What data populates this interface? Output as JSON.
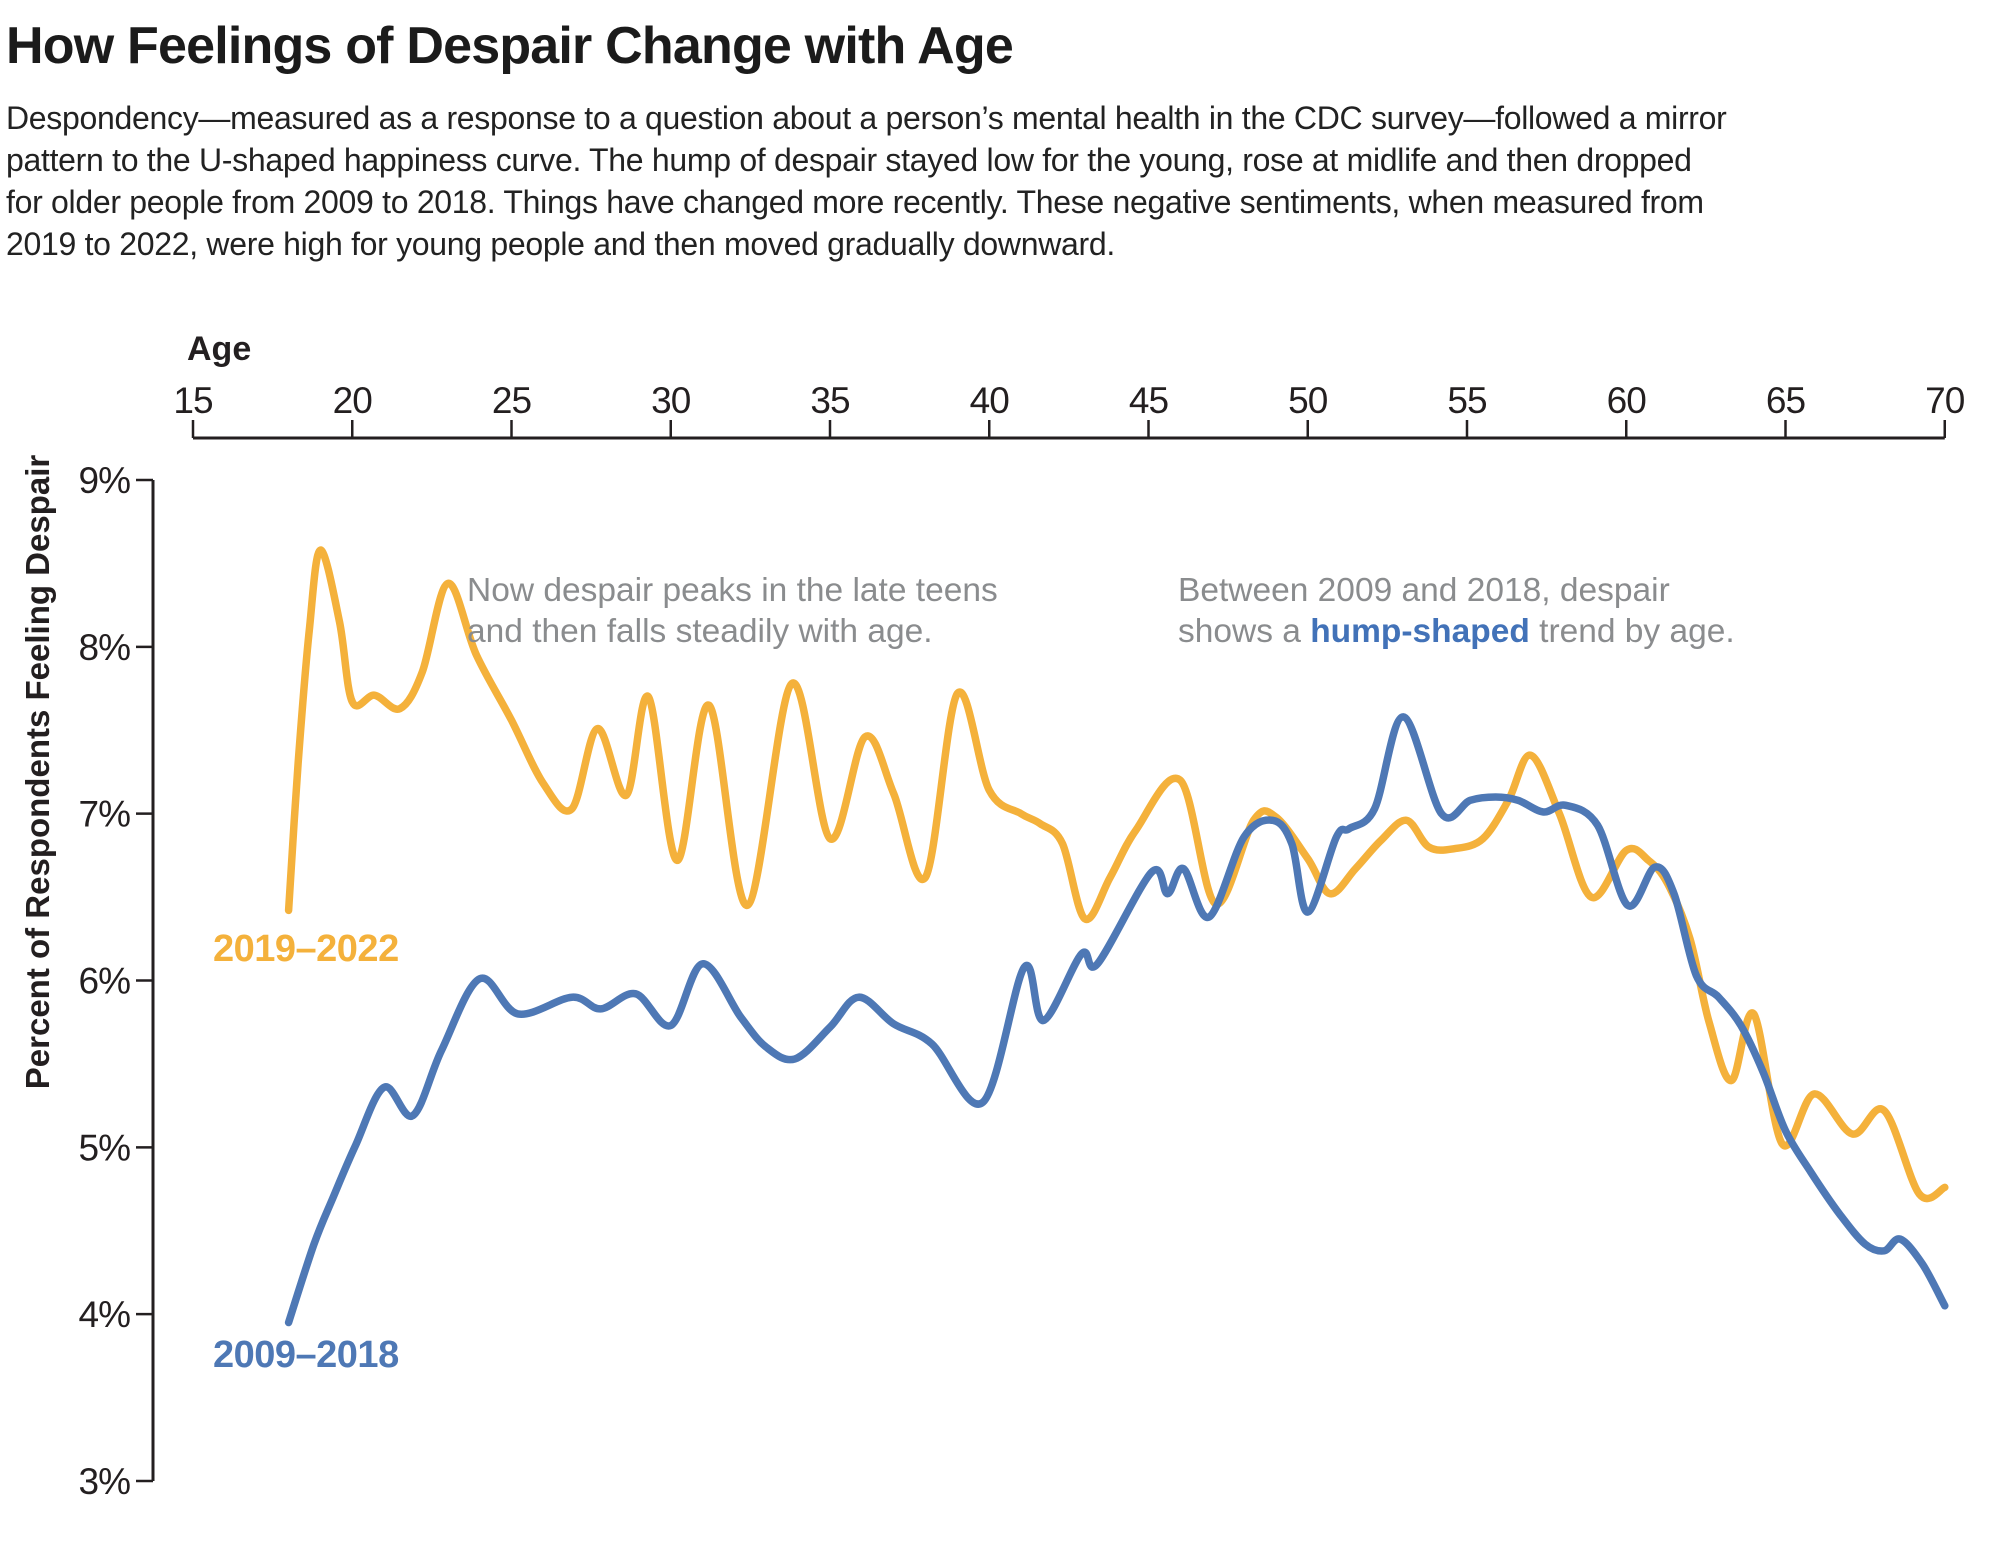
{
  "header": {
    "title": "How Feelings of Despair Change with Age",
    "subtitle_lines": [
      "Despondency—measured as a response to a question about a person’s mental health in the CDC survey—followed a mirror",
      "pattern to the U-shaped happiness curve. The hump of despair stayed low for the young, rose at midlife and then dropped",
      "for older people from 2009 to 2018. Things have changed more recently. These negative sentiments, when measured from",
      "2019 to 2022, were high for young people and then moved gradually downward."
    ]
  },
  "chart": {
    "age_axis_label": "Age",
    "y_axis_label": "Percent of Respondents Feeling Despair",
    "annotations": {
      "teens": {
        "line1": "Now despair peaks in the late teens",
        "line2": "and then falls steadily with age."
      },
      "hump": {
        "line1": "Between 2009 and 2018, despair",
        "line2_pre": "shows a ",
        "line2_bold": "hump-shaped",
        "line2_post": " trend by age."
      }
    },
    "series_labels": {
      "recent": "2019–2022",
      "past": "2009–2018"
    }
  },
  "colors": {
    "yellow": "#F4B13B",
    "blue": "#4E78B5",
    "gray_text": "#8A8C8E",
    "axis": "#231F20",
    "hump_blue": "#4272B8"
  },
  "chart_data": {
    "type": "line",
    "title": "How Feelings of Despair Change with Age",
    "xlabel": "Age",
    "ylabel": "Percent of Respondents Feeling Despair",
    "xlim": [
      15,
      70
    ],
    "ylim": [
      3,
      9
    ],
    "grid": false,
    "legend_position": "inline-labels",
    "x_ticks": [
      15,
      20,
      25,
      30,
      35,
      40,
      45,
      50,
      55,
      60,
      65,
      70
    ],
    "y_ticks": [
      {
        "label": "9%",
        "value": 9
      },
      {
        "label": "8%",
        "value": 8
      },
      {
        "label": "7%",
        "value": 7
      },
      {
        "label": "6%",
        "value": 6
      },
      {
        "label": "5%",
        "value": 5
      },
      {
        "label": "4%",
        "value": 4
      },
      {
        "label": "3%",
        "value": 3
      }
    ],
    "series": [
      {
        "name": "2019–2022",
        "color_key": "yellow",
        "points": [
          [
            18,
            6.42
          ],
          [
            18.3,
            7.3
          ],
          [
            18.65,
            8.1
          ],
          [
            19,
            8.58
          ],
          [
            19.6,
            8.15
          ],
          [
            20,
            7.67
          ],
          [
            20.7,
            7.71
          ],
          [
            21.5,
            7.63
          ],
          [
            22.2,
            7.85
          ],
          [
            23,
            8.38
          ],
          [
            23.9,
            7.95
          ],
          [
            25,
            7.56
          ],
          [
            26,
            7.18
          ],
          [
            26.9,
            7.03
          ],
          [
            27.7,
            7.51
          ],
          [
            28.6,
            7.11
          ],
          [
            29.3,
            7.7
          ],
          [
            30.2,
            6.72
          ],
          [
            31.2,
            7.65
          ],
          [
            32.4,
            6.45
          ],
          [
            33.8,
            7.78
          ],
          [
            35,
            6.85
          ],
          [
            36.1,
            7.46
          ],
          [
            37,
            7.12
          ],
          [
            38,
            6.62
          ],
          [
            39,
            7.72
          ],
          [
            40,
            7.14
          ],
          [
            41,
            7.0
          ],
          [
            41.6,
            6.94
          ],
          [
            42.3,
            6.82
          ],
          [
            43,
            6.37
          ],
          [
            43.8,
            6.62
          ],
          [
            44.6,
            6.9
          ],
          [
            46,
            7.2
          ],
          [
            47.1,
            6.46
          ],
          [
            48.3,
            6.96
          ],
          [
            49,
            6.98
          ],
          [
            50,
            6.73
          ],
          [
            50.7,
            6.52
          ],
          [
            51.5,
            6.67
          ],
          [
            52.3,
            6.84
          ],
          [
            53.1,
            6.96
          ],
          [
            53.8,
            6.8
          ],
          [
            54.6,
            6.79
          ],
          [
            55.5,
            6.85
          ],
          [
            56.3,
            7.08
          ],
          [
            57,
            7.35
          ],
          [
            57.9,
            7.0
          ],
          [
            58.9,
            6.5
          ],
          [
            60,
            6.78
          ],
          [
            60.7,
            6.72
          ],
          [
            61.3,
            6.58
          ],
          [
            62,
            6.25
          ],
          [
            62.6,
            5.75
          ],
          [
            63.3,
            5.4
          ],
          [
            64,
            5.8
          ],
          [
            64.9,
            5.02
          ],
          [
            65.9,
            5.32
          ],
          [
            67.1,
            5.08
          ],
          [
            68.1,
            5.22
          ],
          [
            69.2,
            4.72
          ],
          [
            70,
            4.76
          ]
        ]
      },
      {
        "name": "2009–2018",
        "color_key": "blue",
        "points": [
          [
            18,
            3.95
          ],
          [
            18.8,
            4.42
          ],
          [
            19.4,
            4.7
          ],
          [
            20.1,
            5.01
          ],
          [
            21,
            5.36
          ],
          [
            21.9,
            5.19
          ],
          [
            22.8,
            5.58
          ],
          [
            24,
            6.01
          ],
          [
            25.2,
            5.8
          ],
          [
            26.9,
            5.9
          ],
          [
            27.8,
            5.83
          ],
          [
            28.9,
            5.92
          ],
          [
            30,
            5.73
          ],
          [
            31,
            6.1
          ],
          [
            32.2,
            5.78
          ],
          [
            33,
            5.6
          ],
          [
            33.9,
            5.53
          ],
          [
            35,
            5.72
          ],
          [
            35.9,
            5.9
          ],
          [
            37,
            5.74
          ],
          [
            38.2,
            5.62
          ],
          [
            39.8,
            5.27
          ],
          [
            41.1,
            6.08
          ],
          [
            41.7,
            5.76
          ],
          [
            42.9,
            6.16
          ],
          [
            43.4,
            6.1
          ],
          [
            45.1,
            6.65
          ],
          [
            45.6,
            6.52
          ],
          [
            46.1,
            6.67
          ],
          [
            46.9,
            6.38
          ],
          [
            48,
            6.86
          ],
          [
            48.9,
            6.96
          ],
          [
            49.5,
            6.82
          ],
          [
            50,
            6.41
          ],
          [
            50.9,
            6.86
          ],
          [
            51.3,
            6.91
          ],
          [
            52.1,
            7.03
          ],
          [
            53,
            7.58
          ],
          [
            54.2,
            7.0
          ],
          [
            55.1,
            7.08
          ],
          [
            55.9,
            7.1
          ],
          [
            56.6,
            7.08
          ],
          [
            57.4,
            7.01
          ],
          [
            58.1,
            7.05
          ],
          [
            59.1,
            6.93
          ],
          [
            60.05,
            6.45
          ],
          [
            60.9,
            6.68
          ],
          [
            61.5,
            6.52
          ],
          [
            62.2,
            6.03
          ],
          [
            62.9,
            5.9
          ],
          [
            63.6,
            5.73
          ],
          [
            64.3,
            5.45
          ],
          [
            65,
            5.1
          ],
          [
            65.8,
            4.85
          ],
          [
            66.7,
            4.6
          ],
          [
            67.5,
            4.42
          ],
          [
            68.1,
            4.38
          ],
          [
            68.6,
            4.45
          ],
          [
            69.3,
            4.3
          ],
          [
            70,
            4.05
          ]
        ]
      }
    ]
  }
}
